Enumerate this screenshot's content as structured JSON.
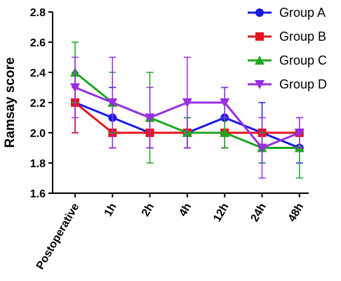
{
  "chart_data": {
    "type": "line",
    "ylabel": "Ramsay score",
    "xlabel": "",
    "title": "",
    "categories": [
      "Postoperative",
      "1h",
      "2h",
      "4h",
      "12h",
      "24h",
      "48h"
    ],
    "ylim": [
      1.6,
      2.8
    ],
    "yticks": [
      "1.6",
      "1.8",
      "2.0",
      "2.2",
      "2.4",
      "2.6",
      "2.8"
    ],
    "legend_position": "top-right",
    "series": [
      {
        "name": "Group A",
        "color": "#1a1ae6",
        "marker": "circle",
        "values": [
          2.2,
          2.1,
          2.0,
          2.0,
          2.1,
          2.0,
          1.9
        ],
        "err_low": [
          2.0,
          1.9,
          1.9,
          1.9,
          1.9,
          1.8,
          1.8
        ],
        "err_high": [
          2.4,
          2.3,
          2.1,
          2.1,
          2.3,
          2.2,
          2.0
        ]
      },
      {
        "name": "Group B",
        "color": "#e6141e",
        "marker": "square",
        "values": [
          2.2,
          2.0,
          2.0,
          2.0,
          2.0,
          2.0,
          2.0
        ],
        "err_low": [
          2.0,
          1.9,
          1.9,
          1.9,
          1.9,
          1.9,
          1.9
        ],
        "err_high": [
          2.3,
          2.0,
          2.1,
          2.0,
          2.0,
          2.0,
          2.1
        ]
      },
      {
        "name": "Group C",
        "color": "#1fa61f",
        "marker": "triangle-up",
        "values": [
          2.4,
          2.2,
          2.1,
          2.0,
          2.0,
          1.9,
          1.9
        ],
        "err_low": [
          2.2,
          2.0,
          1.8,
          1.9,
          1.9,
          1.8,
          1.7
        ],
        "err_high": [
          2.6,
          2.4,
          2.4,
          2.1,
          2.1,
          2.0,
          2.0
        ]
      },
      {
        "name": "Group D",
        "color": "#9a2ee0",
        "marker": "triangle-down",
        "values": [
          2.3,
          2.2,
          2.1,
          2.2,
          2.2,
          1.9,
          2.0
        ],
        "err_low": [
          2.1,
          1.9,
          1.9,
          1.9,
          2.1,
          1.7,
          1.9
        ],
        "err_high": [
          2.5,
          2.5,
          2.3,
          2.5,
          2.3,
          2.1,
          2.1
        ]
      }
    ]
  }
}
